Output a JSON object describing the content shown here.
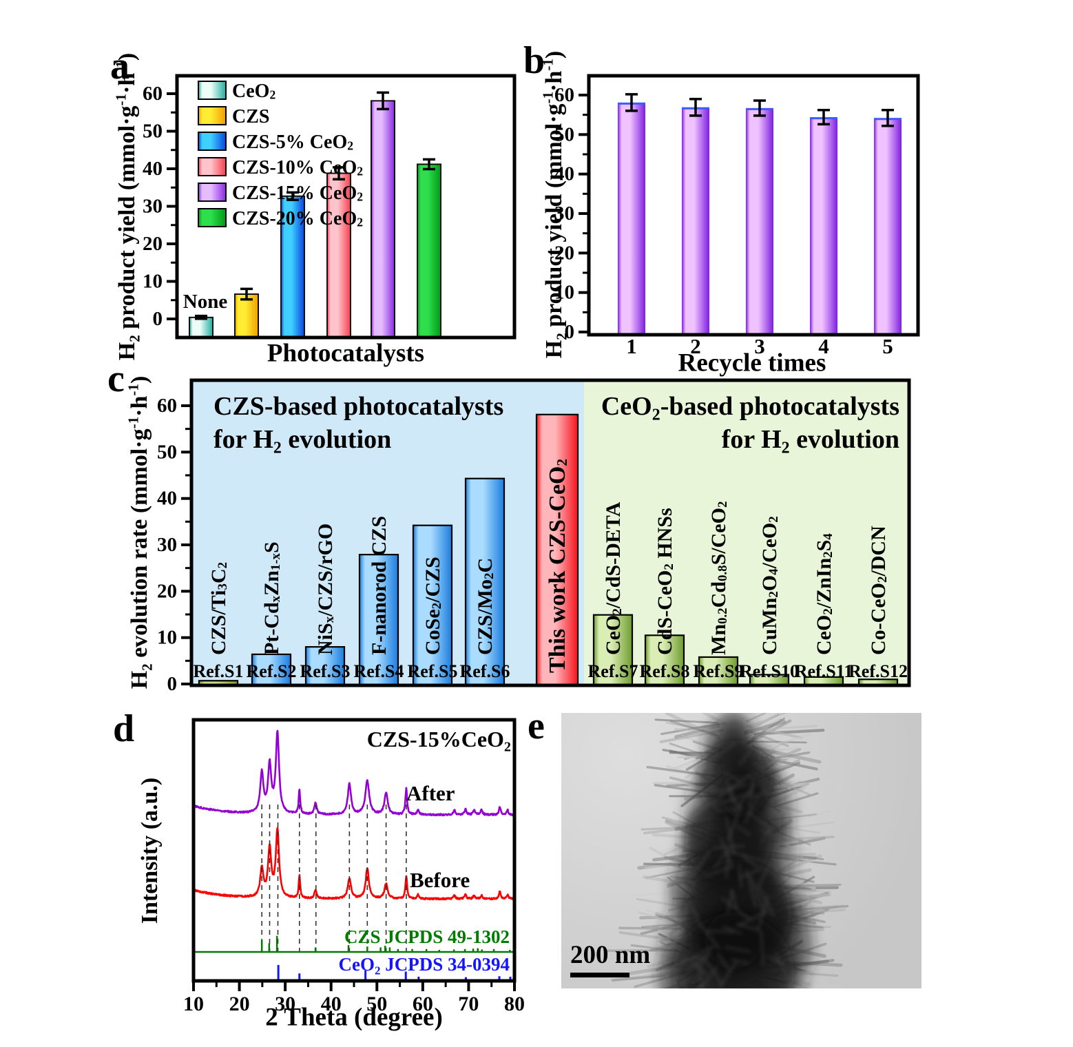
{
  "figure": {
    "panel_letters": [
      "a",
      "b",
      "c",
      "d",
      "e"
    ]
  },
  "chart_data": [
    {
      "id": "a",
      "type": "bar",
      "xlabel": "Photocatalysts",
      "ylabel": "H_{2} product yield (mmol·g^{-1}·h^{-1})",
      "ylim": [
        0,
        65
      ],
      "y_ticks": [
        0,
        10,
        20,
        30,
        40,
        50,
        60
      ],
      "y_minor_step": 5,
      "annotation": "None",
      "categories": [
        "CeO_{2}",
        "CZS",
        "CZS-5% CeO_{2}",
        "CZS-10% CeO_{2}",
        "CZS-15% CeO_{2}",
        "CZS-20% CeO_{2}"
      ],
      "values": [
        0.4,
        6.6,
        32.7,
        38.8,
        58.1,
        41.2
      ],
      "errors": [
        0.4,
        1.4,
        1.0,
        1.6,
        2.2,
        1.3
      ],
      "bar_colors": [
        {
          "edge": "#1fae9e",
          "center": "#effdf9"
        },
        {
          "edge": "#ef9f00",
          "center": "#ffec33"
        },
        {
          "edge": "#0a45e0",
          "center": "#3fd0ff"
        },
        {
          "edge": "#f5404e",
          "center": "#ffc4cb"
        },
        {
          "edge": "#8a2be2",
          "center": "#e5bcff"
        },
        {
          "edge": "#00991a",
          "center": "#2ede4a"
        }
      ],
      "legend_position": "top-left"
    },
    {
      "id": "b",
      "type": "bar",
      "xlabel": "Recycle times",
      "ylabel": "H_{2} product yield (mmol·g^{-1}·h^{-1})",
      "ylim": [
        0,
        65
      ],
      "y_ticks": [
        0,
        10,
        20,
        30,
        40,
        50,
        60
      ],
      "y_minor_step": 5,
      "categories": [
        "1",
        "2",
        "3",
        "4",
        "5"
      ],
      "values": [
        58.1,
        56.9,
        56.7,
        54.4,
        54.2
      ],
      "errors": [
        2.1,
        2.1,
        1.9,
        1.8,
        2.0
      ],
      "bar_color": {
        "edge": "#7d1fe0",
        "center": "#f0c2ff",
        "top_line": "#3a5bff"
      }
    },
    {
      "id": "c",
      "type": "bar",
      "ylabel": "H_{2} evolution rate (mmol·g^{-1}·h^{-1})",
      "ylim": [
        0,
        65
      ],
      "y_ticks": [
        0,
        10,
        20,
        30,
        40,
        50,
        60
      ],
      "y_minor_step": 5,
      "groups": [
        {
          "title_lines": [
            "CZS-based photocatalysts",
            "for H_{2} evolution"
          ],
          "bg": "#cfe9f8",
          "title_align": "left"
        },
        {
          "title_lines": [
            "CeO_{2}-based photocatalysts",
            "for H_{2} evolution"
          ],
          "bg": "#e8f5d8",
          "title_align": "right"
        }
      ],
      "bars": [
        {
          "name": "CZS/Ti_{3}C_{2}",
          "ref": "Ref.S1",
          "value": 0.7,
          "group": 0,
          "edge": "#8a9a30",
          "center": "#ccd888"
        },
        {
          "name": "Pt-Cd_{x}Zn_{1-x}S",
          "ref": "Ref.S2",
          "value": 6.4,
          "group": 0,
          "edge": "#1a7de0",
          "center": "#a9dcff"
        },
        {
          "name": "NiS_{x}/CZS/rGO",
          "ref": "Ref.S3",
          "value": 8.0,
          "group": 0,
          "edge": "#1a7de0",
          "center": "#a9dcff"
        },
        {
          "name": "F-nanorod CZS",
          "ref": "Ref.S4",
          "value": 27.9,
          "group": 0,
          "edge": "#1a7de0",
          "center": "#a9dcff"
        },
        {
          "name": "CoSe_{2}/CZS",
          "ref": "Ref.S5",
          "value": 34.2,
          "group": 0,
          "edge": "#1a7de0",
          "center": "#a9dcff"
        },
        {
          "name": "CZS/Mo_{2}C",
          "ref": "Ref.S6",
          "value": 44.3,
          "group": 0,
          "edge": "#1a7de0",
          "center": "#a9dcff"
        },
        {
          "name": "This work CZS-CeO_{2}",
          "ref": "",
          "value": 58.1,
          "group": 0,
          "edge": "#f5141e",
          "center": "#ffb6ba",
          "highlight": true
        },
        {
          "name": "CeO_{2}/CdS-DETA",
          "ref": "Ref.S7",
          "value": 14.9,
          "group": 1,
          "edge": "#6f9c2e",
          "center": "#d9edb4"
        },
        {
          "name": "CdS-CeO_{2} HNSs",
          "ref": "Ref.S8",
          "value": 10.5,
          "group": 1,
          "edge": "#6f9c2e",
          "center": "#d9edb4"
        },
        {
          "name": "Mn_{0.2}Cd_{0.8}S/CeO_{2}",
          "ref": "Ref.S9",
          "value": 5.8,
          "group": 1,
          "edge": "#6f9c2e",
          "center": "#d9edb4"
        },
        {
          "name": "CuMn_{2}O_{4}/CeO_{2}",
          "ref": "Ref.S10",
          "value": 2.0,
          "group": 1,
          "edge": "#6f9c2e",
          "center": "#d9edb4"
        },
        {
          "name": "CeO_{2}/ZnIn_{2}S_{4}",
          "ref": "Ref.S11",
          "value": 1.5,
          "group": 1,
          "edge": "#6f9c2e",
          "center": "#d9edb4"
        },
        {
          "name": "Co-CeO_{2}/DCN",
          "ref": "Ref.S12",
          "value": 1.0,
          "group": 1,
          "edge": "#6f9c2e",
          "center": "#d9edb4"
        }
      ]
    },
    {
      "id": "d",
      "type": "line",
      "title": "CZS-15%CeO_{2}",
      "xlabel": "2 Theta (degree)",
      "ylabel": "Intensity (a.u.)",
      "xlim": [
        10,
        80
      ],
      "x_ticks": [
        10,
        20,
        30,
        40,
        50,
        60,
        70,
        80
      ],
      "x_minor_step": 5,
      "series": [
        {
          "name": "After",
          "color": "#9400d3",
          "peaks": [
            [
              24.9,
              0.5
            ],
            [
              26.6,
              0.6
            ],
            [
              28.3,
              1.0
            ],
            [
              33.1,
              0.3,
              0.2
            ],
            [
              36.6,
              0.14,
              0.3
            ],
            [
              44.0,
              0.38
            ],
            [
              47.9,
              0.42,
              0.5
            ],
            [
              52.0,
              0.28
            ],
            [
              56.4,
              0.33,
              0.22
            ],
            [
              59.0,
              0.06,
              0.25
            ],
            [
              66.9,
              0.06,
              0.25
            ],
            [
              69.3,
              0.07,
              0.25
            ],
            [
              71.2,
              0.06,
              0.25
            ],
            [
              72.8,
              0.06,
              0.25
            ],
            [
              76.8,
              0.1,
              0.22
            ],
            [
              78.5,
              0.06,
              0.22
            ]
          ]
        },
        {
          "name": "Before",
          "color": "#ff0000",
          "peaks": [
            [
              24.9,
              0.42
            ],
            [
              26.6,
              0.72
            ],
            [
              28.3,
              1.0
            ],
            [
              33.1,
              0.33,
              0.2
            ],
            [
              36.6,
              0.12,
              0.3
            ],
            [
              44.0,
              0.3
            ],
            [
              47.9,
              0.45
            ],
            [
              52.0,
              0.22
            ],
            [
              56.4,
              0.33,
              0.22
            ],
            [
              59.0,
              0.06,
              0.25
            ],
            [
              66.9,
              0.05,
              0.25
            ],
            [
              69.3,
              0.06,
              0.25
            ],
            [
              71.2,
              0.05,
              0.25
            ],
            [
              72.8,
              0.05,
              0.25
            ],
            [
              76.8,
              0.11,
              0.22
            ],
            [
              78.5,
              0.06,
              0.22
            ]
          ]
        }
      ],
      "reference_patterns": [
        {
          "name": "CZS JCPDS 49-1302",
          "color": "#007c00",
          "sticks": [
            [
              24.9,
              0.58
            ],
            [
              26.5,
              0.42
            ],
            [
              28.2,
              0.78
            ],
            [
              36.6,
              0.22
            ],
            [
              43.8,
              0.33
            ],
            [
              47.9,
              0.26
            ],
            [
              50.8,
              0.22
            ],
            [
              51.8,
              0.3
            ],
            [
              52.8,
              0.22
            ],
            [
              54.6,
              0.14
            ],
            [
              57.7,
              0.14
            ],
            [
              60.8,
              0.14
            ],
            [
              63.6,
              0.1
            ],
            [
              66.8,
              0.12
            ],
            [
              69.2,
              0.14
            ],
            [
              71.0,
              0.16
            ],
            [
              72.0,
              0.18
            ],
            [
              72.9,
              0.12
            ],
            [
              75.5,
              0.14
            ],
            [
              79.0,
              0.1
            ]
          ]
        },
        {
          "name": "CeO_{2} JCPDS 34-0394",
          "color": "#1414ff",
          "sticks": [
            [
              28.5,
              0.62
            ],
            [
              33.1,
              0.26
            ],
            [
              47.5,
              0.38
            ],
            [
              56.3,
              0.34
            ],
            [
              59.1,
              0.12
            ],
            [
              69.4,
              0.1
            ],
            [
              76.7,
              0.14
            ],
            [
              79.1,
              0.12
            ]
          ]
        }
      ],
      "dashed_guides": [
        24.9,
        26.6,
        28.4,
        33.1,
        36.7,
        44.0,
        47.9,
        52.0,
        56.4
      ]
    }
  ],
  "panel_e": {
    "type": "TEM-image",
    "scale_bar": "200 nm"
  }
}
